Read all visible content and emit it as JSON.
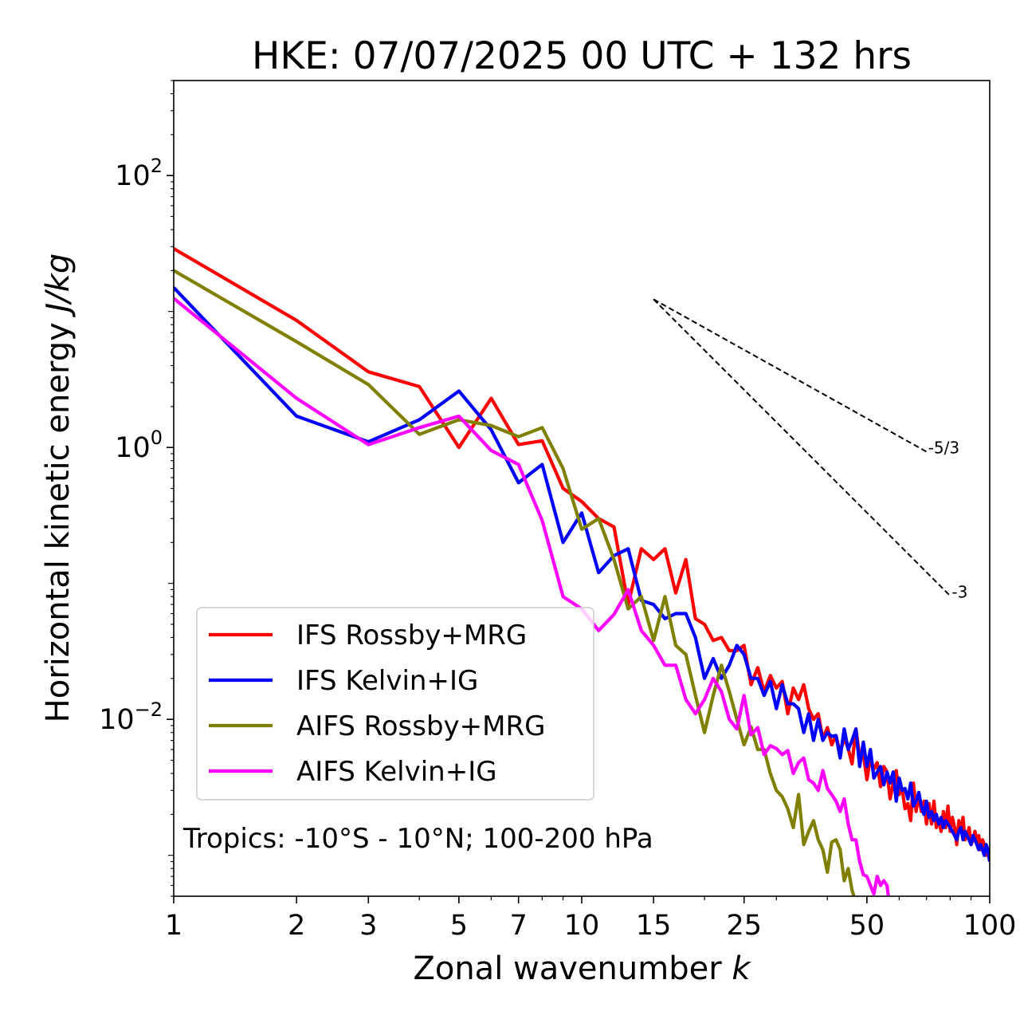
{
  "chart_data": {
    "type": "line",
    "title": "HKE: 07/07/2025 00 UTC + 132 hrs",
    "xlabel": "Zonal wavenumber",
    "xlabel_var": "k",
    "ylabel": "Horizontal kinetic energy",
    "ylabel_unit": "J/kg",
    "xscale": "log",
    "yscale": "log",
    "xlim": [
      1,
      100
    ],
    "ylim": [
      0.0005,
      500
    ],
    "xticks": [
      1,
      2,
      3,
      5,
      7,
      10,
      15,
      25,
      50,
      100
    ],
    "xtick_labels": [
      "1",
      "2",
      "3",
      "5",
      "7",
      "10",
      "15",
      "25",
      "50",
      "100"
    ],
    "yticks": [
      {
        "base": "10",
        "exp": "2",
        "value": 100
      },
      {
        "base": "10",
        "exp": "0",
        "value": 1
      },
      {
        "base": "10",
        "exp": "−2",
        "value": 0.01
      }
    ],
    "grid": false,
    "legend_position": "lower-left",
    "annotation": "Tropics: -10°S - 10°N; 100-200 hPa",
    "reference_slopes": [
      {
        "label": "-5/3",
        "slope": -1.667,
        "x": [
          15,
          70
        ],
        "y": [
          12.3,
          0.93
        ]
      },
      {
        "label": "-3",
        "slope": -3,
        "x": [
          15,
          80
        ],
        "y": [
          12.3,
          0.081
        ]
      }
    ],
    "series": [
      {
        "name": "IFS Rossby+MRG",
        "color": "#ff0000",
        "x": [
          1,
          2,
          3,
          4,
          5,
          6,
          7,
          8,
          9,
          10,
          11,
          12,
          13,
          14,
          15,
          16,
          17,
          18,
          19,
          20,
          21,
          22,
          23,
          24,
          25,
          26,
          27,
          28,
          29,
          30,
          31,
          32,
          33,
          34,
          35,
          36,
          37,
          38,
          39,
          40,
          41,
          42,
          43,
          44,
          45,
          46,
          47,
          48,
          49,
          50,
          51,
          52,
          53,
          54,
          55,
          56,
          57,
          58,
          59,
          60,
          61,
          62,
          63,
          64,
          65,
          66,
          67,
          68,
          69,
          70,
          71,
          72,
          73,
          74,
          75,
          76,
          77,
          78,
          79,
          80,
          81,
          82,
          83,
          84,
          85,
          86,
          87,
          88,
          89,
          90,
          91,
          92,
          93,
          94,
          95,
          96,
          97,
          98,
          99,
          100
        ],
        "y": [
          29,
          8.6,
          3.6,
          2.8,
          1.0,
          2.3,
          1.05,
          1.12,
          0.5,
          0.4,
          0.3,
          0.26,
          0.07,
          0.18,
          0.15,
          0.18,
          0.085,
          0.15,
          0.055,
          0.05,
          0.038,
          0.04,
          0.032,
          0.032,
          0.035,
          0.018,
          0.024,
          0.016,
          0.021,
          0.017,
          0.019,
          0.011,
          0.017,
          0.014,
          0.018,
          0.012,
          0.01,
          0.011,
          0.0072,
          0.0087,
          0.0065,
          0.0076,
          0.0057,
          0.0073,
          0.0061,
          0.0047,
          0.0085,
          0.0053,
          0.0055,
          0.0036,
          0.0052,
          0.0043,
          0.0048,
          0.0032,
          0.0045,
          0.0041,
          0.0026,
          0.0034,
          0.0042,
          0.0028,
          0.0031,
          0.0022,
          0.0024,
          0.0018,
          0.0034,
          0.0021,
          0.0028,
          0.0021,
          0.0025,
          0.0017,
          0.0024,
          0.0017,
          0.0025,
          0.0016,
          0.0018,
          0.0015,
          0.0021,
          0.0016,
          0.0023,
          0.0015,
          0.0019,
          0.0016,
          0.0012,
          0.0018,
          0.0015,
          0.0019,
          0.0013,
          0.0014,
          0.0016,
          0.0012,
          0.0013,
          0.0015,
          0.0012,
          0.0014,
          0.0011,
          0.0013,
          0.0012,
          0.001,
          0.0011,
          0.0009
        ]
      },
      {
        "name": "IFS Kelvin+IG",
        "color": "#0000ff",
        "x": [
          1,
          2,
          3,
          4,
          5,
          6,
          7,
          8,
          9,
          10,
          11,
          12,
          13,
          14,
          15,
          16,
          17,
          18,
          19,
          20,
          21,
          22,
          23,
          24,
          25,
          26,
          27,
          28,
          29,
          30,
          31,
          32,
          33,
          34,
          35,
          36,
          37,
          38,
          39,
          40,
          41,
          42,
          43,
          44,
          45,
          46,
          47,
          48,
          49,
          50,
          51,
          52,
          53,
          54,
          55,
          56,
          57,
          58,
          59,
          60,
          61,
          62,
          63,
          64,
          65,
          66,
          67,
          68,
          69,
          70,
          71,
          72,
          73,
          74,
          75,
          76,
          77,
          78,
          79,
          80,
          81,
          82,
          83,
          84,
          85,
          86,
          87,
          88,
          89,
          90,
          91,
          92,
          93,
          94,
          95,
          96,
          97,
          98,
          99,
          100
        ],
        "y": [
          15,
          1.7,
          1.1,
          1.6,
          2.6,
          1.35,
          0.55,
          0.75,
          0.2,
          0.33,
          0.12,
          0.16,
          0.18,
          0.075,
          0.07,
          0.055,
          0.06,
          0.06,
          0.04,
          0.02,
          0.028,
          0.02,
          0.025,
          0.035,
          0.03,
          0.02,
          0.02,
          0.015,
          0.019,
          0.012,
          0.018,
          0.013,
          0.013,
          0.012,
          0.008,
          0.011,
          0.007,
          0.01,
          0.007,
          0.008,
          0.0075,
          0.0076,
          0.0052,
          0.0085,
          0.006,
          0.007,
          0.0085,
          0.0045,
          0.0068,
          0.0045,
          0.006,
          0.0037,
          0.0041,
          0.0045,
          0.0033,
          0.0041,
          0.0034,
          0.0041,
          0.0025,
          0.0037,
          0.003,
          0.0031,
          0.0026,
          0.0034,
          0.0023,
          0.0025,
          0.0029,
          0.0023,
          0.002,
          0.0025,
          0.0019,
          0.0021,
          0.0018,
          0.002,
          0.0017,
          0.0019,
          0.0016,
          0.0018,
          0.0017,
          0.0016,
          0.0015,
          0.0014,
          0.0013,
          0.0015,
          0.0016,
          0.0013,
          0.0015,
          0.0014,
          0.0013,
          0.0012,
          0.0014,
          0.0013,
          0.0012,
          0.0011,
          0.0012,
          0.0011,
          0.001,
          0.0012,
          0.0011,
          0.0009
        ]
      },
      {
        "name": "AIFS Rossby+MRG",
        "color": "#808000",
        "x": [
          1,
          2,
          3,
          4,
          5,
          6,
          7,
          8,
          9,
          10,
          11,
          12,
          13,
          14,
          15,
          16,
          17,
          18,
          19,
          20,
          21,
          22,
          23,
          24,
          25,
          26,
          27,
          28,
          29,
          30,
          31,
          32,
          33,
          34,
          35,
          36,
          37,
          38,
          39,
          40,
          41,
          42,
          43,
          44,
          45,
          46,
          47
        ],
        "y": [
          20,
          6.0,
          2.9,
          1.25,
          1.6,
          1.45,
          1.2,
          1.4,
          0.7,
          0.25,
          0.3,
          0.15,
          0.065,
          0.08,
          0.038,
          0.08,
          0.035,
          0.03,
          0.015,
          0.008,
          0.015,
          0.025,
          0.016,
          0.01,
          0.0065,
          0.0088,
          0.006,
          0.006,
          0.004,
          0.003,
          0.0027,
          0.0022,
          0.0016,
          0.0028,
          0.0012,
          0.0015,
          0.0018,
          0.0013,
          0.0011,
          0.00075,
          0.00125,
          0.0013,
          0.0011,
          0.00065,
          0.0008,
          0.00055,
          0.00045
        ]
      },
      {
        "name": "AIFS Kelvin+IG",
        "color": "#ff00ff",
        "x": [
          1,
          2,
          3,
          4,
          5,
          6,
          7,
          8,
          9,
          10,
          11,
          12,
          13,
          14,
          15,
          16,
          17,
          18,
          19,
          20,
          21,
          22,
          23,
          24,
          25,
          26,
          27,
          28,
          29,
          30,
          31,
          32,
          33,
          34,
          35,
          36,
          37,
          38,
          39,
          40,
          41,
          42,
          43,
          44,
          45,
          46,
          47,
          48,
          49,
          50,
          51,
          52,
          53,
          54,
          55,
          56,
          57,
          58,
          59,
          60
        ],
        "y": [
          12.5,
          2.3,
          1.05,
          1.4,
          1.7,
          0.95,
          0.75,
          0.29,
          0.08,
          0.065,
          0.045,
          0.059,
          0.09,
          0.045,
          0.035,
          0.025,
          0.025,
          0.014,
          0.011,
          0.014,
          0.02,
          0.016,
          0.01,
          0.0085,
          0.015,
          0.0077,
          0.0087,
          0.0055,
          0.0064,
          0.0061,
          0.0055,
          0.0059,
          0.004,
          0.0048,
          0.0052,
          0.0036,
          0.0034,
          0.003,
          0.0042,
          0.0031,
          0.0028,
          0.0025,
          0.0021,
          0.0026,
          0.0017,
          0.0013,
          0.0013,
          0.0009,
          0.00072,
          0.0007,
          0.0006,
          0.00052,
          0.0007,
          0.0006,
          0.00065,
          0.0006,
          0.0004,
          0.00045,
          0.0004,
          0.00045
        ]
      }
    ]
  }
}
